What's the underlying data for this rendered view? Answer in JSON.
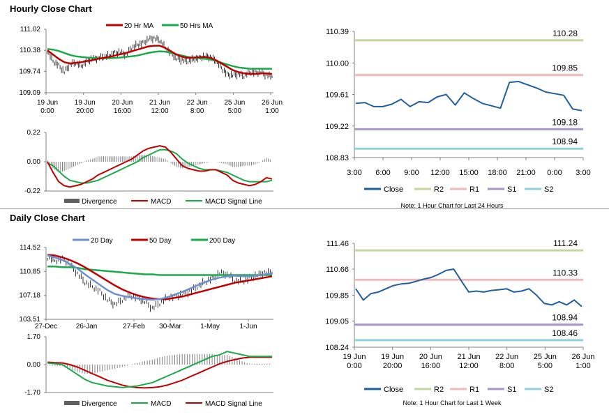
{
  "sections": {
    "hourly_title": "Hourly Close Chart",
    "daily_title": "Daily Close Chart"
  },
  "colors": {
    "close": "#1f5fa0",
    "ma20": "#c00000",
    "ma50": "#1aaa4a",
    "ma200": "#1aaa4a",
    "ma20d": "#6b8fd1",
    "ma50d": "#c00000",
    "price_bar": "#000000",
    "divergence": "#808080",
    "r2": "#c3d69b",
    "r1": "#f0b8b8",
    "s1": "#a894c8",
    "s2": "#8fd0dd"
  },
  "chart_data": [
    {
      "id": "hourly_price",
      "type": "line",
      "legend": [
        "20 Hr MA",
        "50 Hrs MA"
      ],
      "yticks": [
        "111.02",
        "110.38",
        "109.74",
        "109.09"
      ],
      "ylim": [
        109.09,
        111.02
      ],
      "xticks": [
        [
          "19 Jun",
          "0:00"
        ],
        [
          "19 Jun",
          "20:00"
        ],
        [
          "20 Jun",
          "16:00"
        ],
        [
          "21 Jun",
          "12:00"
        ],
        [
          "22 Jun",
          "8:00"
        ],
        [
          "25 Jun",
          "5:00"
        ],
        [
          "26 Jun",
          "1:00"
        ]
      ],
      "series": [
        {
          "name": "Close",
          "values": [
            110.35,
            110.05,
            109.92,
            109.72,
            109.95,
            110.0,
            109.9,
            110.05,
            110.12,
            110.15,
            110.18,
            110.22,
            110.3,
            110.32,
            110.25,
            110.45,
            110.55,
            110.6,
            110.72,
            110.75,
            110.68,
            110.45,
            110.3,
            110.12,
            110.08,
            110.05,
            110.1,
            110.15,
            110.2,
            110.18,
            110.05,
            109.85,
            109.65,
            109.62,
            109.66,
            109.6,
            109.72,
            109.7,
            109.72,
            109.62,
            109.58
          ]
        },
        {
          "name": "20 Hr MA",
          "values": [
            110.38,
            110.25,
            110.12,
            110.02,
            109.98,
            110.0,
            110.02,
            110.05,
            110.08,
            110.12,
            110.15,
            110.18,
            110.22,
            110.26,
            110.3,
            110.35,
            110.4,
            110.45,
            110.5,
            110.52,
            110.52,
            110.45,
            110.35,
            110.25,
            110.18,
            110.15,
            110.16,
            110.17,
            110.18,
            110.15,
            110.08,
            109.98,
            109.88,
            109.78,
            109.72,
            109.68,
            109.66,
            109.66,
            109.68,
            109.68,
            109.66
          ]
        },
        {
          "name": "50 Hrs MA",
          "values": [
            110.42,
            110.4,
            110.36,
            110.3,
            110.24,
            110.2,
            110.18,
            110.16,
            110.15,
            110.14,
            110.14,
            110.14,
            110.15,
            110.16,
            110.18,
            110.2,
            110.22,
            110.26,
            110.3,
            110.33,
            110.35,
            110.34,
            110.3,
            110.26,
            110.22,
            110.18,
            110.15,
            110.14,
            110.12,
            110.1,
            110.06,
            110.0,
            109.95,
            109.9,
            109.86,
            109.84,
            109.82,
            109.82,
            109.82,
            109.82,
            109.82
          ]
        }
      ]
    },
    {
      "id": "hourly_macd",
      "type": "line",
      "legend": [
        "Divergence",
        "MACD",
        "MACD Signal Line"
      ],
      "yticks": [
        "0.22",
        "0.00",
        "-0.22"
      ],
      "ylim": [
        -0.22,
        0.22
      ],
      "series": [
        {
          "name": "MACD",
          "values": [
            0.0,
            -0.08,
            -0.15,
            -0.18,
            -0.19,
            -0.18,
            -0.17,
            -0.15,
            -0.13,
            -0.1,
            -0.08,
            -0.06,
            -0.04,
            -0.02,
            0.0,
            0.02,
            0.05,
            0.08,
            0.1,
            0.11,
            0.12,
            0.11,
            0.07,
            0.02,
            -0.03,
            -0.05,
            -0.06,
            -0.07,
            -0.07,
            -0.06,
            -0.06,
            -0.08,
            -0.1,
            -0.14,
            -0.16,
            -0.17,
            -0.18,
            -0.17,
            -0.15,
            -0.12,
            -0.13
          ]
        },
        {
          "name": "MACD Signal Line",
          "values": [
            -0.01,
            -0.03,
            -0.07,
            -0.11,
            -0.14,
            -0.15,
            -0.16,
            -0.16,
            -0.15,
            -0.14,
            -0.12,
            -0.1,
            -0.08,
            -0.06,
            -0.04,
            -0.02,
            0.0,
            0.03,
            0.05,
            0.07,
            0.09,
            0.09,
            0.08,
            0.06,
            0.02,
            -0.01,
            -0.03,
            -0.05,
            -0.06,
            -0.06,
            -0.06,
            -0.07,
            -0.08,
            -0.1,
            -0.12,
            -0.14,
            -0.15,
            -0.15,
            -0.15,
            -0.15,
            -0.14
          ]
        },
        {
          "name": "Divergence",
          "values": [
            0.01,
            -0.05,
            -0.08,
            -0.07,
            -0.05,
            -0.03,
            -0.01,
            0.01,
            0.02,
            0.04,
            0.04,
            0.04,
            0.04,
            0.04,
            0.04,
            0.04,
            0.05,
            0.05,
            0.05,
            0.04,
            0.03,
            0.02,
            -0.01,
            -0.04,
            -0.05,
            -0.04,
            -0.03,
            -0.02,
            -0.01,
            0.0,
            0.0,
            -0.01,
            -0.02,
            -0.04,
            -0.04,
            -0.03,
            -0.03,
            -0.02,
            0.0,
            0.03,
            0.01
          ]
        }
      ]
    },
    {
      "id": "hourly_pivot",
      "type": "line",
      "yticks": [
        "110.39",
        "110.00",
        "109.61",
        "109.22",
        "108.83"
      ],
      "ylim": [
        108.83,
        110.39
      ],
      "xticks": [
        "3:00",
        "6:00",
        "9:00",
        "12:00",
        "15:00",
        "18:00",
        "21:00",
        "0:00",
        "3:00"
      ],
      "levels": [
        {
          "name": "R2",
          "value": 110.28,
          "label": "110.28"
        },
        {
          "name": "R1",
          "value": 109.85,
          "label": "109.85"
        },
        {
          "name": "S1",
          "value": 109.18,
          "label": "109.18"
        },
        {
          "name": "S2",
          "value": 108.94,
          "label": "108.94"
        }
      ],
      "series": [
        {
          "name": "Close",
          "values": [
            109.5,
            109.51,
            109.46,
            109.46,
            109.49,
            109.55,
            109.46,
            109.52,
            109.51,
            109.58,
            109.61,
            109.48,
            109.63,
            109.56,
            109.5,
            109.47,
            109.44,
            109.76,
            109.77,
            109.73,
            109.69,
            109.64,
            109.62,
            109.6,
            109.43,
            109.41
          ]
        }
      ],
      "legend": [
        "Close",
        "R2",
        "R1",
        "S1",
        "S2"
      ],
      "note": "Note: 1 Hour Chart for Last 24 Hours"
    },
    {
      "id": "daily_price",
      "type": "line",
      "legend": [
        "20 Day",
        "50 Day",
        "200 Day"
      ],
      "yticks": [
        "114.52",
        "110.85",
        "107.18",
        "103.51"
      ],
      "ylim": [
        103.51,
        114.52
      ],
      "xticks": [
        "27-Dec",
        "26-Jan",
        "27-Feb",
        "30-Mar",
        "1-May",
        "1-Jun"
      ],
      "series": [
        {
          "name": "Close",
          "values": [
            113.0,
            112.5,
            112.8,
            112.0,
            110.5,
            109.2,
            108.5,
            107.8,
            106.5,
            105.8,
            106.5,
            107.2,
            106.8,
            106.2,
            105.2,
            106.0,
            106.8,
            107.0,
            107.3,
            107.8,
            108.5,
            109.2,
            109.8,
            110.6,
            110.5,
            109.5,
            109.3,
            109.8,
            110.3,
            110.7,
            110.6
          ]
        },
        {
          "name": "20 Day",
          "values": [
            113.3,
            113.0,
            112.6,
            112.0,
            111.3,
            110.4,
            109.6,
            108.8,
            108.0,
            107.4,
            107.1,
            106.9,
            106.7,
            106.6,
            106.5,
            106.6,
            106.9,
            107.3,
            107.7,
            108.2,
            108.7,
            109.2,
            109.6,
            109.9,
            110.1,
            110.2,
            110.1,
            110.1,
            110.2,
            110.4,
            110.5
          ]
        },
        {
          "name": "50 Day",
          "values": [
            113.4,
            113.3,
            113.0,
            112.6,
            112.1,
            111.5,
            110.8,
            110.1,
            109.4,
            108.7,
            108.1,
            107.6,
            107.2,
            106.9,
            106.7,
            106.6,
            106.6,
            106.8,
            107.0,
            107.3,
            107.6,
            107.9,
            108.2,
            108.5,
            108.8,
            109.1,
            109.3,
            109.5,
            109.7,
            109.9,
            110.1
          ]
        },
        {
          "name": "200 Day",
          "values": [
            111.6,
            111.6,
            111.5,
            111.5,
            111.4,
            111.2,
            111.1,
            111.0,
            110.9,
            110.8,
            110.7,
            110.6,
            110.5,
            110.4,
            110.4,
            110.3,
            110.3,
            110.3,
            110.3,
            110.3,
            110.3,
            110.3,
            110.3,
            110.3,
            110.3,
            110.3,
            110.3,
            110.3,
            110.3,
            110.3,
            110.3
          ]
        }
      ]
    },
    {
      "id": "daily_macd",
      "type": "line",
      "legend": [
        "Divergence",
        "MACD",
        "MACD Signal Line"
      ],
      "yticks": [
        "1.70",
        "0.00",
        "-1.70"
      ],
      "ylim": [
        -1.7,
        1.7
      ],
      "series": [
        {
          "name": "MACD",
          "values": [
            0.1,
            0.05,
            0.0,
            -0.3,
            -0.6,
            -0.9,
            -1.1,
            -1.2,
            -1.3,
            -1.35,
            -1.4,
            -1.35,
            -1.3,
            -1.2,
            -1.1,
            -0.9,
            -0.7,
            -0.5,
            -0.3,
            -0.1,
            0.1,
            0.3,
            0.5,
            0.6,
            0.8,
            0.7,
            0.6,
            0.5,
            0.5,
            0.5,
            0.5
          ]
        },
        {
          "name": "MACD Signal Line",
          "values": [
            0.15,
            0.12,
            0.1,
            0.0,
            -0.15,
            -0.35,
            -0.55,
            -0.75,
            -0.95,
            -1.1,
            -1.25,
            -1.35,
            -1.4,
            -1.42,
            -1.4,
            -1.35,
            -1.25,
            -1.1,
            -0.95,
            -0.75,
            -0.55,
            -0.35,
            -0.15,
            0.05,
            0.2,
            0.3,
            0.4,
            0.45,
            0.45,
            0.45,
            0.45
          ]
        },
        {
          "name": "Divergence",
          "values": [
            -0.05,
            -0.07,
            -0.1,
            -0.3,
            -0.45,
            -0.55,
            -0.55,
            -0.45,
            -0.35,
            -0.25,
            -0.15,
            0.0,
            0.1,
            0.22,
            0.3,
            0.45,
            0.55,
            0.6,
            0.65,
            0.65,
            0.65,
            0.65,
            0.65,
            0.55,
            0.6,
            0.4,
            0.2,
            0.05,
            0.05,
            0.05,
            0.05
          ]
        }
      ]
    },
    {
      "id": "daily_pivot",
      "type": "line",
      "yticks": [
        "111.46",
        "110.66",
        "109.85",
        "109.05",
        "108.24"
      ],
      "ylim": [
        108.24,
        111.46
      ],
      "xticks": [
        [
          "19 Jun",
          "0:00"
        ],
        [
          "19 Jun",
          "20:00"
        ],
        [
          "20 Jun",
          "16:00"
        ],
        [
          "21 Jun",
          "12:00"
        ],
        [
          "22 Jun",
          "8:00"
        ],
        [
          "25 Jun",
          "5:00"
        ],
        [
          "26 Jun",
          "1:00"
        ]
      ],
      "levels": [
        {
          "name": "R2",
          "value": 111.24,
          "label": "111.24"
        },
        {
          "name": "R1",
          "value": 110.33,
          "label": "110.33"
        },
        {
          "name": "S1",
          "value": 108.94,
          "label": "108.94"
        },
        {
          "name": "S2",
          "value": 108.46,
          "label": "108.46"
        }
      ],
      "series": [
        {
          "name": "Close",
          "values": [
            110.05,
            109.7,
            109.9,
            109.95,
            110.05,
            110.15,
            110.2,
            110.22,
            110.28,
            110.35,
            110.4,
            110.5,
            110.62,
            110.66,
            110.3,
            109.95,
            109.98,
            109.95,
            110.0,
            110.02,
            110.05,
            109.95,
            109.98,
            110.05,
            109.85,
            109.6,
            109.55,
            109.65,
            109.55,
            109.7,
            109.5
          ]
        }
      ],
      "legend": [
        "Close",
        "R2",
        "R1",
        "S1",
        "S2"
      ],
      "note": "Note: 1 Hour Chart for Last 1 Week"
    }
  ]
}
